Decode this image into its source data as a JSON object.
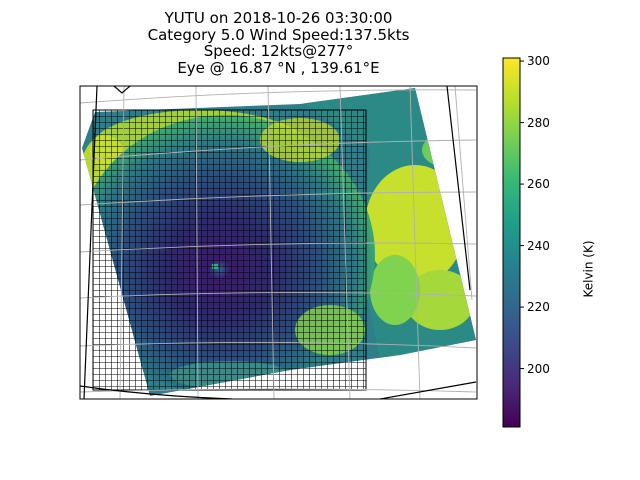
{
  "title": {
    "line1": "YUTU on 2018-10-26 03:30:00",
    "line2": "Category 5.0 Wind Speed:137.5kts",
    "line3": "Speed: 12kts@277°",
    "line4": "Eye @ 16.87 °N , 139.61°E"
  },
  "colorbar": {
    "label": "Kelvin (K)",
    "ticks": [
      "200",
      "220",
      "240",
      "260",
      "280",
      "300"
    ],
    "colormap": [
      "#440154",
      "#482878",
      "#3e4989",
      "#31688e",
      "#26828e",
      "#1f9e89",
      "#35b779",
      "#6ece58",
      "#b5de2b",
      "#fde725"
    ],
    "range_min_k": 181,
    "range_max_k": 301
  },
  "map": {
    "storm_name": "YUTU",
    "eye_lat": 16.87,
    "eye_lon": 139.61,
    "gridlines": true,
    "overlay_grid": true
  }
}
